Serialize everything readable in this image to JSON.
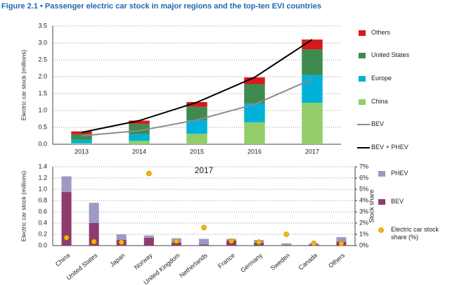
{
  "chart_data": [
    {
      "type": "bar",
      "stacked": true,
      "title": "Figure 2.1 • Passenger electric car stock in major regions and the top-ten EVI countries",
      "y_label": "Electric car stock (millions)",
      "categories": [
        "2013",
        "2014",
        "2015",
        "2016",
        "2017"
      ],
      "series": [
        {
          "name": "China",
          "color": "#92cd6a",
          "values": [
            0.03,
            0.1,
            0.31,
            0.65,
            1.23
          ]
        },
        {
          "name": "Europe",
          "color": "#00b2d9",
          "values": [
            0.1,
            0.2,
            0.4,
            0.56,
            0.82
          ]
        },
        {
          "name": "United States",
          "color": "#3f8a4f",
          "values": [
            0.17,
            0.3,
            0.4,
            0.57,
            0.76
          ]
        },
        {
          "name": "Others",
          "color": "#d7191c",
          "values": [
            0.08,
            0.1,
            0.14,
            0.2,
            0.29
          ]
        },
        {
          "name": "BEV",
          "type": "line",
          "color": "#8c8c8c",
          "values": [
            0.25,
            0.4,
            0.72,
            1.18,
            1.93
          ]
        },
        {
          "name": "BEV + PHEV",
          "type": "line",
          "color": "#000000",
          "values": [
            0.35,
            0.7,
            1.24,
            1.98,
            3.1
          ]
        }
      ],
      "ylim": [
        0,
        3.5
      ],
      "yticks": [
        {
          "value": 0,
          "label": "0.0"
        },
        0.5,
        {
          "value": 1,
          "label": "1.0"
        },
        1.5,
        {
          "value": 2,
          "label": "2.0"
        },
        2.5,
        {
          "value": 3,
          "label": "3.0"
        },
        3.5
      ],
      "grid": true
    },
    {
      "type": "bar",
      "stacked": true,
      "annotation": "2017",
      "y_label": "Electric car stock (millions)",
      "y2_label": "Stock share",
      "categories": [
        "China",
        "United States",
        "Japan",
        "Norway",
        "United Kingdom",
        "Netherlands",
        "France",
        "Germany",
        "Sweden",
        "Canada",
        "Others"
      ],
      "series": [
        {
          "name": "BEV",
          "color": "#8e3b6e",
          "values": [
            0.95,
            0.4,
            0.1,
            0.14,
            0.05,
            0.02,
            0.09,
            0.05,
            0.01,
            0.02,
            0.07
          ]
        },
        {
          "name": "PHEV",
          "color": "#9f98c4",
          "values": [
            0.28,
            0.36,
            0.1,
            0.04,
            0.08,
            0.1,
            0.03,
            0.05,
            0.03,
            0.02,
            0.08
          ]
        },
        {
          "name": "Electric car stock share (%)",
          "type": "scatter",
          "axis": "y2",
          "color": "#f5b800",
          "values": [
            0.7,
            0.35,
            0.3,
            6.4,
            0.4,
            1.6,
            0.4,
            0.3,
            1.0,
            0.2,
            0.2
          ]
        }
      ],
      "ylim": [
        0,
        1.4
      ],
      "yticks": [
        {
          "value": 0,
          "label": "0.0"
        },
        0.2,
        0.4,
        0.6,
        0.8,
        {
          "value": 1,
          "label": "1.0"
        },
        1.2,
        1.4
      ],
      "y2lim": [
        0,
        7
      ],
      "y2ticks": [
        {
          "value": 0,
          "label": "0%"
        },
        {
          "value": 1,
          "label": "1%"
        },
        {
          "value": 2,
          "label": "2%"
        },
        {
          "value": 3,
          "label": "3%"
        },
        {
          "value": 4,
          "label": "4%"
        },
        {
          "value": 5,
          "label": "5%"
        },
        {
          "value": 6,
          "label": "6%"
        },
        {
          "value": 7,
          "label": "7%"
        }
      ],
      "grid": true
    }
  ]
}
